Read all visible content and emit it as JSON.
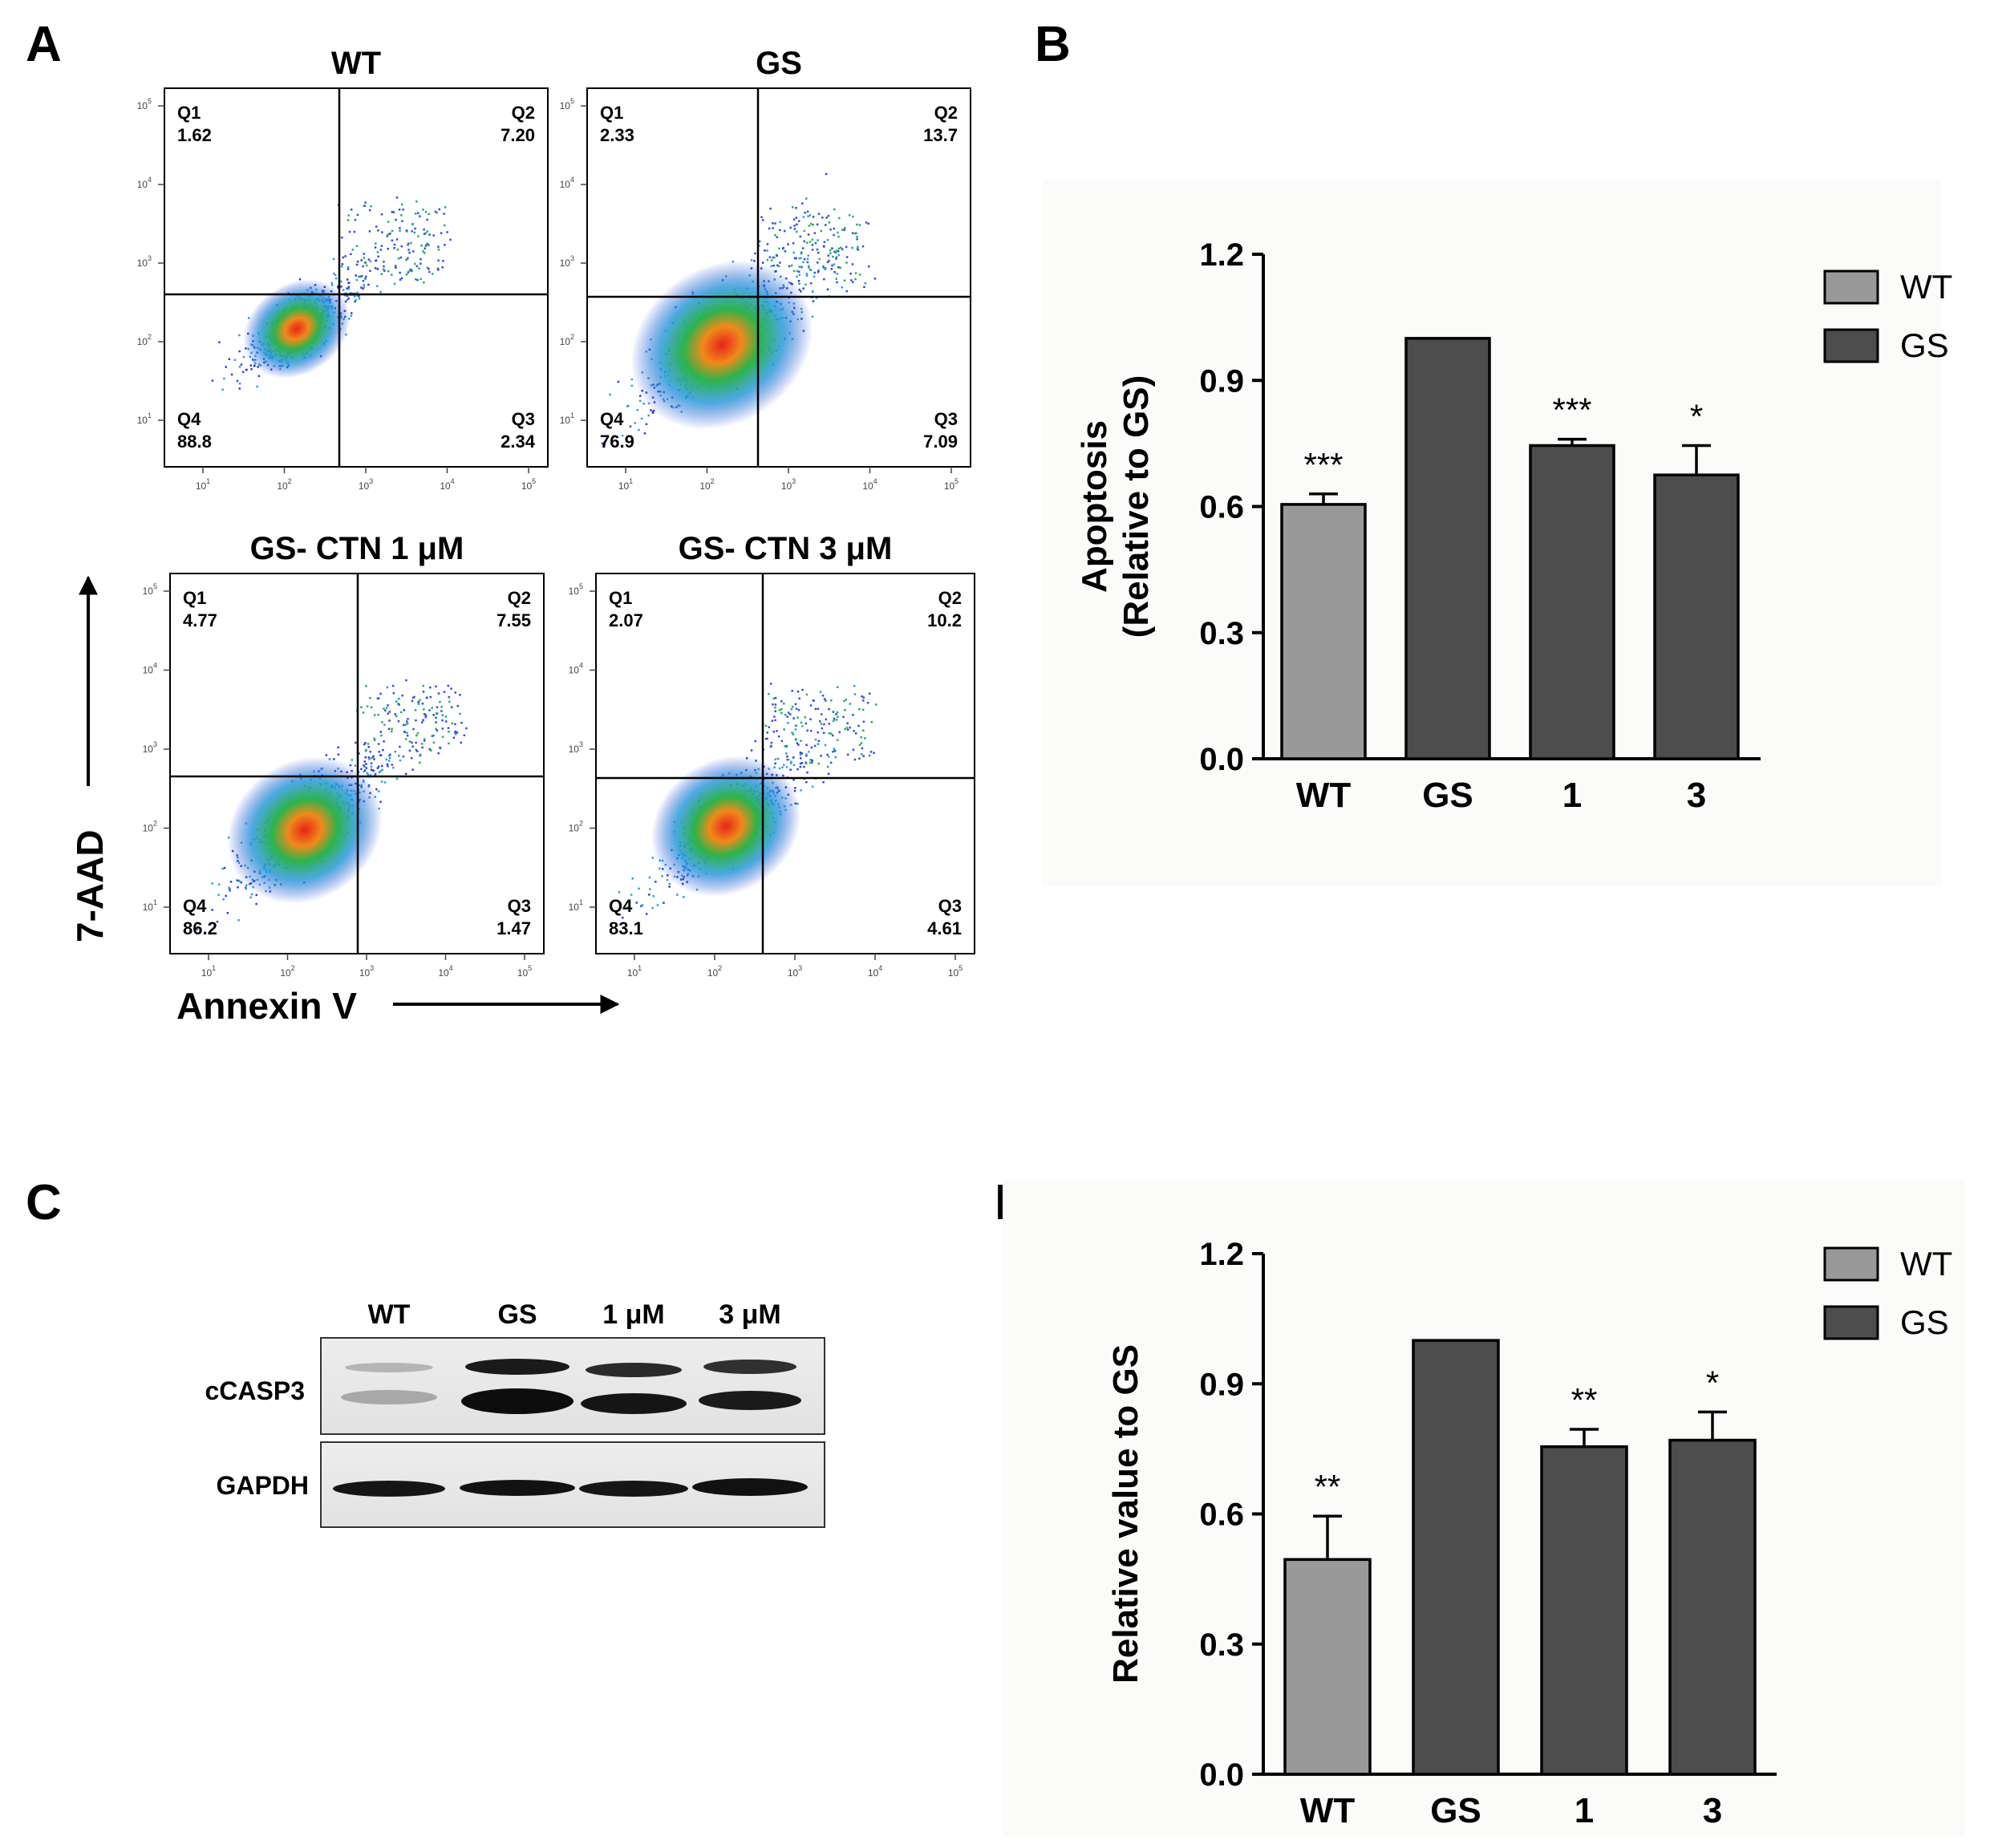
{
  "panel_labels": {
    "a": "A",
    "b": "B",
    "c": "C",
    "d": "D"
  },
  "flow": {
    "y_axis_label": "7-AAD",
    "x_axis_label": "Annexin V",
    "tick_exponents": [
      "1",
      "2",
      "3",
      "4",
      "5"
    ],
    "tick_base": "10",
    "plots": [
      {
        "title": "WT",
        "q1": {
          "name": "Q1",
          "value": "1.62"
        },
        "q2": {
          "name": "Q2",
          "value": "7.20"
        },
        "q3": {
          "name": "Q3",
          "value": "2.34"
        },
        "q4": {
          "name": "Q4",
          "value": "88.8"
        }
      },
      {
        "title": "GS",
        "q1": {
          "name": "Q1",
          "value": "2.33"
        },
        "q2": {
          "name": "Q2",
          "value": "13.7"
        },
        "q3": {
          "name": "Q3",
          "value": "7.09"
        },
        "q4": {
          "name": "Q4",
          "value": "76.9"
        }
      },
      {
        "title": "GS- CTN 1 μM",
        "q1": {
          "name": "Q1",
          "value": "4.77"
        },
        "q2": {
          "name": "Q2",
          "value": "7.55"
        },
        "q3": {
          "name": "Q3",
          "value": "1.47"
        },
        "q4": {
          "name": "Q4",
          "value": "86.2"
        }
      },
      {
        "title": "GS- CTN 3 μM",
        "q1": {
          "name": "Q1",
          "value": "2.07"
        },
        "q2": {
          "name": "Q2",
          "value": "10.2"
        },
        "q3": {
          "name": "Q3",
          "value": "4.61"
        },
        "q4": {
          "name": "Q4",
          "value": "83.1"
        }
      }
    ]
  },
  "western": {
    "lanes": [
      "WT",
      "GS",
      "1 μM",
      "3 μM"
    ],
    "rows": [
      "cCASP3",
      "GAPDH"
    ]
  },
  "colors": {
    "wt_bar": "#999999",
    "gs_bar": "#4d4d4d"
  },
  "chart_data": [
    {
      "type": "bar",
      "panel": "B",
      "categories": [
        "WT",
        "GS",
        "1",
        "3"
      ],
      "values": [
        0.605,
        1.0,
        0.745,
        0.675
      ],
      "errors": [
        0.025,
        0.0,
        0.015,
        0.07
      ],
      "significance": [
        "***",
        "",
        "***",
        "*"
      ],
      "ylabel_line1": "Apoptosis",
      "ylabel_line2": "(Relative to GS)",
      "ylim": [
        0,
        1.2
      ],
      "yticks": [
        "0.0",
        "0.3",
        "0.6",
        "0.9",
        "1.2"
      ],
      "legend": [
        "WT",
        "GS"
      ],
      "legend_position": "top-right"
    },
    {
      "type": "bar",
      "panel": "D",
      "categories": [
        "WT",
        "GS",
        "1",
        "3"
      ],
      "values": [
        0.495,
        1.0,
        0.755,
        0.77
      ],
      "errors": [
        0.1,
        0.0,
        0.04,
        0.065
      ],
      "significance": [
        "**",
        "",
        "**",
        "*"
      ],
      "ylabel_line1": "Relative value to GS",
      "ylabel_line2": "",
      "ylim": [
        0,
        1.2
      ],
      "yticks": [
        "0.0",
        "0.3",
        "0.6",
        "0.9",
        "1.2"
      ],
      "legend": [
        "WT",
        "GS"
      ],
      "legend_position": "top-right"
    }
  ]
}
